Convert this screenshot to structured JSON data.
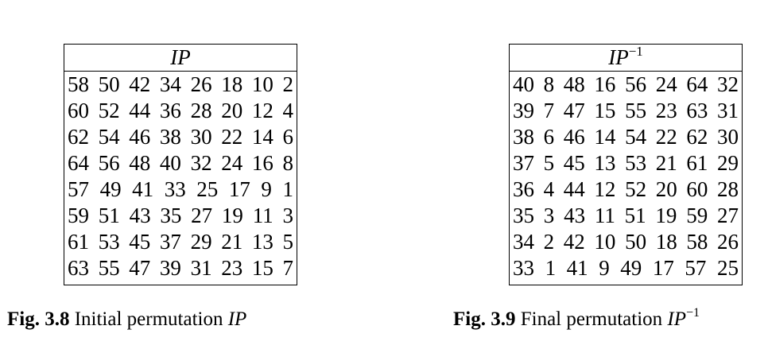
{
  "figures": [
    {
      "header": "IP",
      "header_superscript": "",
      "rows": [
        [
          "58",
          "50",
          "42",
          "34",
          "26",
          "18",
          "10",
          "2"
        ],
        [
          "60",
          "52",
          "44",
          "36",
          "28",
          "20",
          "12",
          "4"
        ],
        [
          "62",
          "54",
          "46",
          "38",
          "30",
          "22",
          "14",
          "6"
        ],
        [
          "64",
          "56",
          "48",
          "40",
          "32",
          "24",
          "16",
          "8"
        ],
        [
          "57",
          "49",
          "41",
          "33",
          "25",
          "17",
          "9",
          "1"
        ],
        [
          "59",
          "51",
          "43",
          "35",
          "27",
          "19",
          "11",
          "3"
        ],
        [
          "61",
          "53",
          "45",
          "37",
          "29",
          "21",
          "13",
          "5"
        ],
        [
          "63",
          "55",
          "47",
          "39",
          "31",
          "23",
          "15",
          "7"
        ]
      ],
      "caption": {
        "label": "Fig. 3.8",
        "text": "Initial permutation",
        "math": "IP",
        "superscript": ""
      }
    },
    {
      "header": "IP",
      "header_superscript": "−1",
      "rows": [
        [
          "40",
          "8",
          "48",
          "16",
          "56",
          "24",
          "64",
          "32"
        ],
        [
          "39",
          "7",
          "47",
          "15",
          "55",
          "23",
          "63",
          "31"
        ],
        [
          "38",
          "6",
          "46",
          "14",
          "54",
          "22",
          "62",
          "30"
        ],
        [
          "37",
          "5",
          "45",
          "13",
          "53",
          "21",
          "61",
          "29"
        ],
        [
          "36",
          "4",
          "44",
          "12",
          "52",
          "20",
          "60",
          "28"
        ],
        [
          "35",
          "3",
          "43",
          "11",
          "51",
          "19",
          "59",
          "27"
        ],
        [
          "34",
          "2",
          "42",
          "10",
          "50",
          "18",
          "58",
          "26"
        ],
        [
          "33",
          "1",
          "41",
          "9",
          "49",
          "17",
          "57",
          "25"
        ]
      ],
      "caption": {
        "label": "Fig. 3.9",
        "text": "Final permutation",
        "math": "IP",
        "superscript": "−1"
      }
    }
  ]
}
